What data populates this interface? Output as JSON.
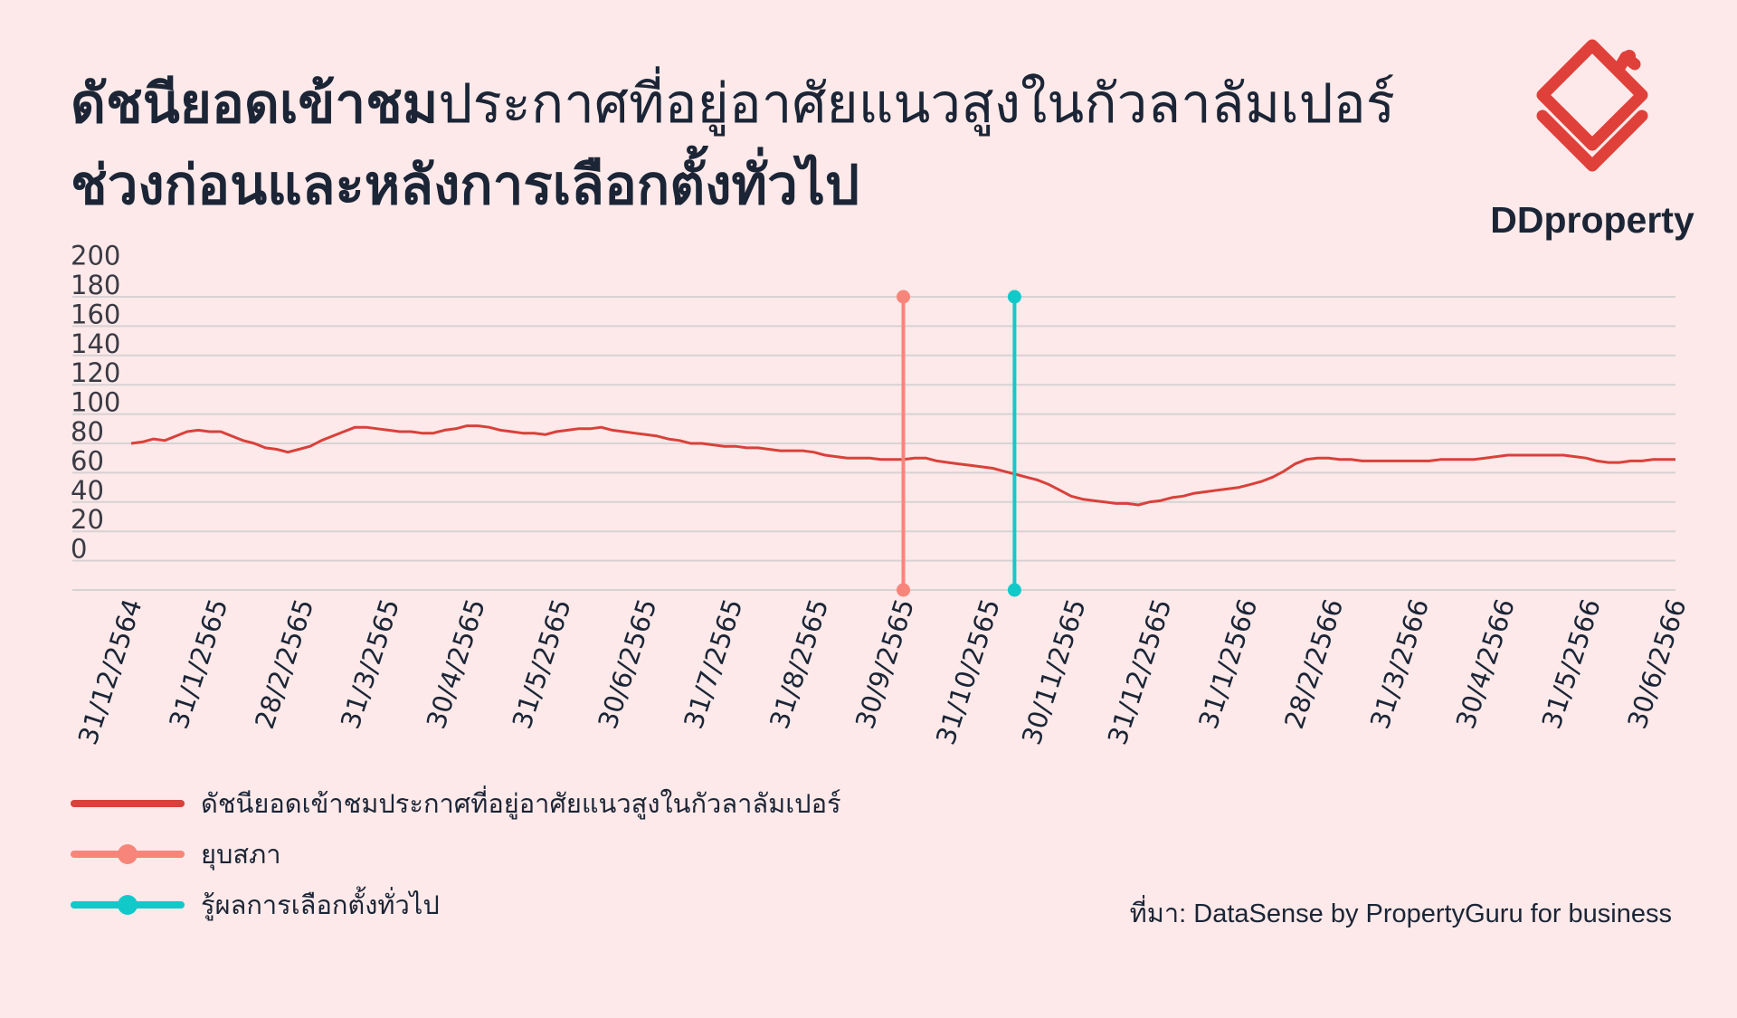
{
  "title": {
    "line1_bold": "ดัชนียอดเข้าชม",
    "line1_regular": "ประกาศที่อยู่อาศัยแนวสูงในกัวลาลัมเปอร์",
    "line2": "ช่วงก่อนและหลังการเลือกตั้งทั่วไป"
  },
  "logo": {
    "text": "DDproperty",
    "icon": "ddproperty-house-logo",
    "color": "#e0403a"
  },
  "source": "ที่มา: DataSense by PropertyGuru for business",
  "colors": {
    "background": "#fde9e9",
    "series": "#d9413a",
    "dissolution": "#f7857a",
    "result": "#12c9c9",
    "grid": "#d7d2d4",
    "text": "#1b2536"
  },
  "chart_data": {
    "type": "line",
    "ylim": [
      0,
      200
    ],
    "y_ticks": [
      "200",
      "180",
      "160",
      "140",
      "120",
      "100",
      "80",
      "60",
      "40",
      "20",
      "0"
    ],
    "y_tick_values": [
      200,
      180,
      160,
      140,
      120,
      100,
      80,
      60,
      40,
      20,
      0
    ],
    "x_tick_labels": [
      "31/12/2564",
      "31/1/2565",
      "28/2/2565",
      "31/3/2565",
      "30/4/2565",
      "31/5/2565",
      "30/6/2565",
      "31/7/2565",
      "31/8/2565",
      "30/9/2565",
      "31/10/2565",
      "30/11/2565",
      "31/12/2565",
      "31/1/2566",
      "28/2/2566",
      "31/3/2566",
      "30/4/2566",
      "31/5/2566",
      "30/6/2566"
    ],
    "grid": true,
    "series": [
      {
        "name": "ดัชนียอดเข้าชมประกาศที่อยู่อาศัยแนวสูงในกัวลาลัมเปอร์",
        "values": [
          80,
          81,
          83,
          82,
          85,
          88,
          89,
          88,
          88,
          85,
          82,
          80,
          77,
          76,
          74,
          76,
          78,
          82,
          85,
          88,
          91,
          91,
          90,
          89,
          88,
          88,
          87,
          87,
          89,
          90,
          92,
          92,
          91,
          89,
          88,
          87,
          87,
          86,
          88,
          89,
          90,
          90,
          91,
          89,
          88,
          87,
          86,
          85,
          83,
          82,
          80,
          80,
          79,
          78,
          78,
          77,
          77,
          76,
          75,
          75,
          75,
          74,
          72,
          71,
          70,
          70,
          70,
          69,
          69,
          69,
          70,
          70,
          68,
          67,
          66,
          65,
          64,
          63,
          61,
          59,
          57,
          55,
          52,
          48,
          44,
          42,
          41,
          40,
          39,
          39,
          38,
          40,
          41,
          43,
          44,
          46,
          47,
          48,
          49,
          50,
          52,
          54,
          57,
          61,
          66,
          69,
          70,
          70,
          69,
          69,
          68,
          68,
          68,
          68,
          68,
          68,
          68,
          69,
          69,
          69,
          69,
          70,
          71,
          72,
          72,
          72,
          72,
          72,
          72,
          71,
          70,
          68,
          67,
          67,
          68,
          68,
          69,
          69,
          69
        ]
      }
    ],
    "events": [
      {
        "name": "ยุบสภา",
        "x_fraction": 0.5,
        "y_top": 180,
        "y_bottom": -20
      },
      {
        "name": "รู้ผลการเลือกตั้งทั่วไป",
        "x_fraction": 0.572,
        "y_top": 180,
        "y_bottom": -20
      }
    ]
  },
  "legend": [
    {
      "label": "ดัชนียอดเข้าชมประกาศที่อยู่อาศัยแนวสูงในกัวลาลัมเปอร์",
      "style": "line",
      "color": "#d9413a"
    },
    {
      "label": "ยุบสภา",
      "style": "line-dot",
      "color": "#f7857a"
    },
    {
      "label": "รู้ผลการเลือกตั้งทั่วไป",
      "style": "line-dot",
      "color": "#12c9c9"
    }
  ]
}
